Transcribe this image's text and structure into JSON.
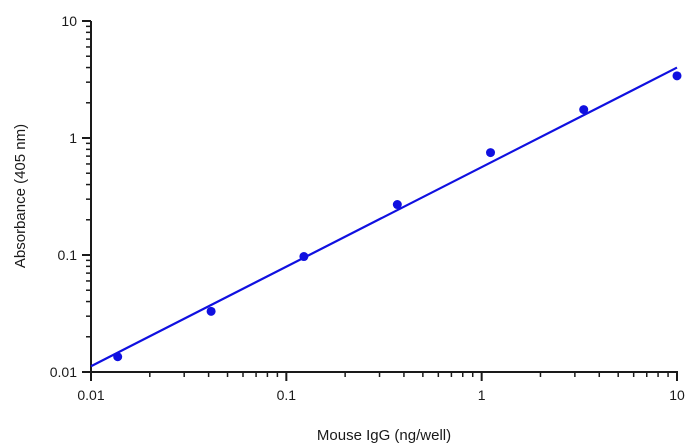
{
  "chart_data": {
    "type": "scatter",
    "xlabel": "Mouse IgG (ng/well)",
    "ylabel": "Absorbance (405 nm)",
    "x_scale": "log",
    "y_scale": "log",
    "xlim": [
      0.01,
      10
    ],
    "ylim": [
      0.01,
      10
    ],
    "x_ticks": [
      {
        "value": 0.01,
        "label": "0.01"
      },
      {
        "value": 0.1,
        "label": "0.1"
      },
      {
        "value": 1,
        "label": "1"
      },
      {
        "value": 10,
        "label": "10"
      }
    ],
    "y_ticks": [
      {
        "value": 0.01,
        "label": "0.01"
      },
      {
        "value": 0.1,
        "label": "0.1"
      },
      {
        "value": 1,
        "label": "1"
      },
      {
        "value": 10,
        "label": "10"
      }
    ],
    "grid": false,
    "legend": "none",
    "colors": {
      "points": "#1010e0",
      "fit_line": "#1010e0",
      "axes": "#1a1a1a"
    },
    "series": [
      {
        "type": "scatter",
        "x": [
          0.0137,
          0.0412,
          0.123,
          0.37,
          1.11,
          3.33,
          10.0
        ],
        "y": [
          0.0135,
          0.033,
          0.097,
          0.27,
          0.75,
          1.75,
          3.4
        ]
      },
      {
        "type": "line",
        "x": [
          0.01,
          10.0
        ],
        "y": [
          0.0112,
          4.0
        ]
      }
    ]
  }
}
